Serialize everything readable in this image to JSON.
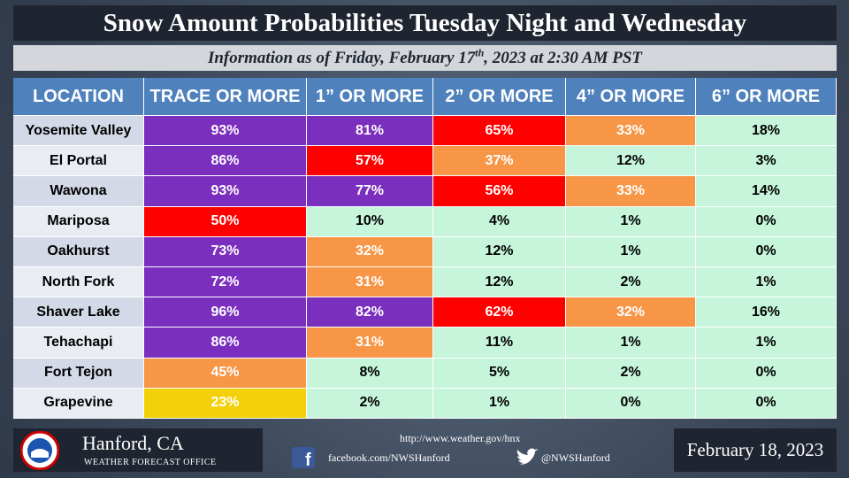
{
  "header": {
    "title": "Snow Amount Probabilities Tuesday Night and Wednesday",
    "subtitle": [
      "Information as of Friday, February 17",
      "th",
      ", 2023 at 2:30 AM PST"
    ]
  },
  "table": {
    "palette": {
      "purple": "#7b2fbe",
      "red": "#ff0000",
      "orange": "#f79646",
      "yellow": "#f2d10a",
      "green": "#c6f5dc"
    },
    "header": [
      "LOCATION",
      "TRACE OR MORE",
      "1” OR MORE",
      "2” OR MORE",
      "4” OR MORE",
      "6” OR MORE"
    ],
    "rows": [
      {
        "location": "Yosemite Valley",
        "cells": [
          "93%",
          "81%",
          "65%",
          "33%",
          "18%"
        ],
        "levels": [
          "purple",
          "purple",
          "red",
          "orange",
          "green"
        ]
      },
      {
        "location": "El Portal",
        "cells": [
          "86%",
          "57%",
          "37%",
          "12%",
          "3%"
        ],
        "levels": [
          "purple",
          "red",
          "orange",
          "green",
          "green"
        ]
      },
      {
        "location": "Wawona",
        "cells": [
          "93%",
          "77%",
          "56%",
          "33%",
          "14%"
        ],
        "levels": [
          "purple",
          "purple",
          "red",
          "orange",
          "green"
        ]
      },
      {
        "location": "Mariposa",
        "cells": [
          "50%",
          "10%",
          "4%",
          "1%",
          "0%"
        ],
        "levels": [
          "red",
          "green",
          "green",
          "green",
          "green"
        ]
      },
      {
        "location": "Oakhurst",
        "cells": [
          "73%",
          "32%",
          "12%",
          "1%",
          "0%"
        ],
        "levels": [
          "purple",
          "orange",
          "green",
          "green",
          "green"
        ]
      },
      {
        "location": "North Fork",
        "cells": [
          "72%",
          "31%",
          "12%",
          "2%",
          "1%"
        ],
        "levels": [
          "purple",
          "orange",
          "green",
          "green",
          "green"
        ]
      },
      {
        "location": "Shaver Lake",
        "cells": [
          "96%",
          "82%",
          "62%",
          "32%",
          "16%"
        ],
        "levels": [
          "purple",
          "purple",
          "red",
          "orange",
          "green"
        ]
      },
      {
        "location": "Tehachapi",
        "cells": [
          "86%",
          "31%",
          "11%",
          "1%",
          "1%"
        ],
        "levels": [
          "purple",
          "orange",
          "green",
          "green",
          "green"
        ]
      },
      {
        "location": "Fort Tejon",
        "cells": [
          "45%",
          "8%",
          "5%",
          "2%",
          "0%"
        ],
        "levels": [
          "orange",
          "green",
          "green",
          "green",
          "green"
        ]
      },
      {
        "location": "Grapevine",
        "cells": [
          "23%",
          "2%",
          "1%",
          "0%",
          "0%"
        ],
        "levels": [
          "yellow",
          "green",
          "green",
          "green",
          "green"
        ]
      }
    ]
  },
  "footer": {
    "office": "Hanford, CA",
    "office_sub": "WEATHER FORECAST OFFICE",
    "website": "http://www.weather.gov/hnx",
    "facebook": "facebook.com/NWSHanford",
    "twitter": "@NWSHanford",
    "date": "February 18, 2023"
  }
}
